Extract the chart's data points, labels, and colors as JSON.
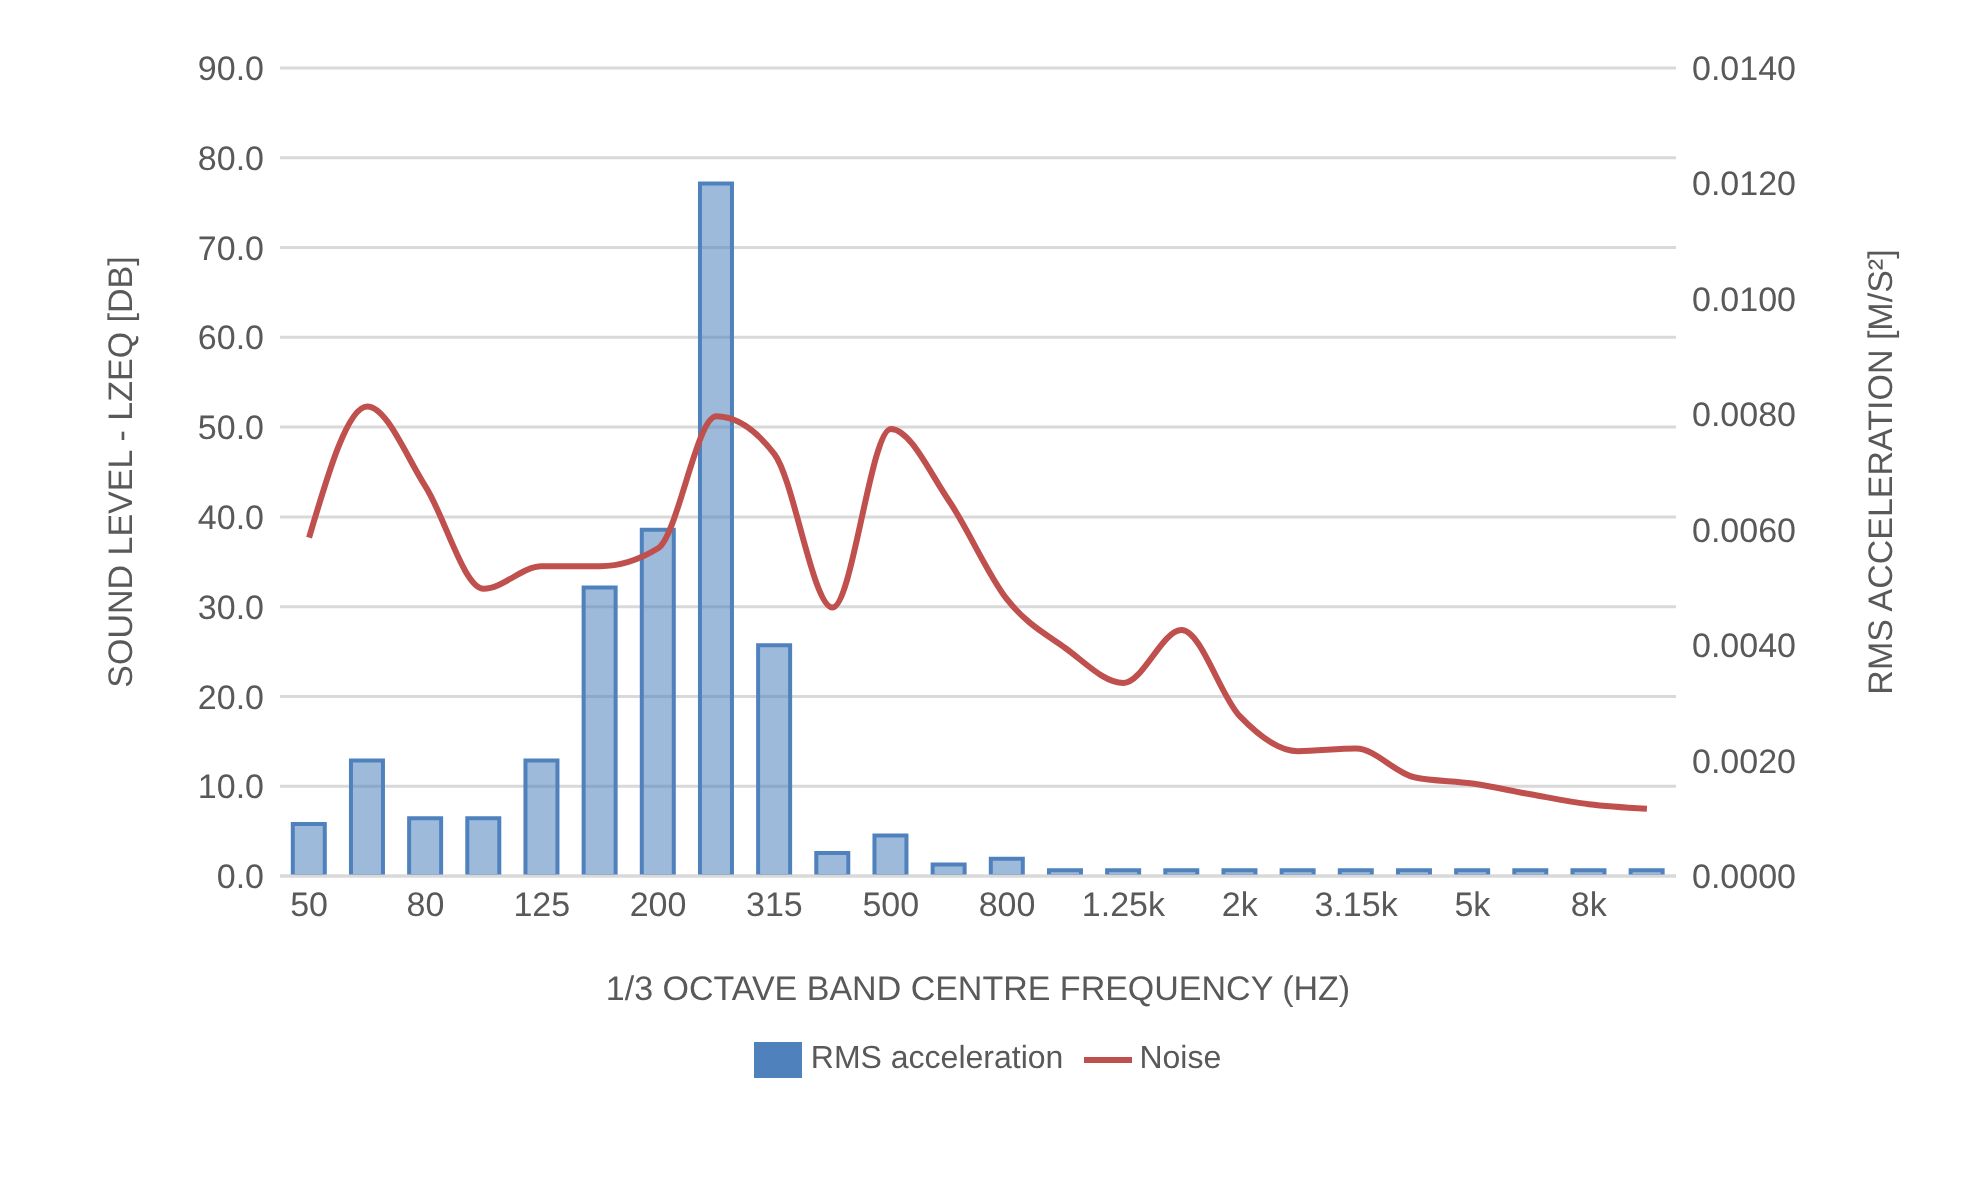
{
  "chart_data": {
    "type": "bar",
    "xlabel": "1/3 OCTAVE BAND CENTRE FREQUENCY (HZ)",
    "ylabel": "SOUND LEVEL - LZEQ [DB]",
    "y2label": "RMS ACCELERATION [M/S²]",
    "categories": [
      "50",
      null,
      "80",
      null,
      "125",
      null,
      "200",
      null,
      "315",
      null,
      "500",
      null,
      "800",
      null,
      "1.25k",
      null,
      "2k",
      null,
      "3.15k",
      null,
      "5k",
      null,
      "8k",
      null
    ],
    "series": [
      {
        "name": "RMS acceleration",
        "axis": "y2",
        "color": "#4f81bd",
        "values": [
          0.0009,
          0.002,
          0.001,
          0.001,
          0.002,
          0.005,
          0.006,
          0.012,
          0.004,
          0.0004,
          0.0007,
          0.0002,
          0.0003,
          0.0001,
          0.0001,
          0.0001,
          0.0001,
          0.0001,
          0.0001,
          0.0001,
          0.0001,
          0.0001,
          0.0001,
          0.0001
        ]
      },
      {
        "name": "Noise",
        "type": "line",
        "axis": "y",
        "color": "#c0504d",
        "values": [
          37.7,
          52.3,
          43.4,
          32.0,
          34.5,
          34.5,
          36.5,
          51.2,
          47.0,
          29.9,
          49.8,
          41.8,
          30.8,
          25.4,
          21.5,
          27.4,
          17.8,
          13.9,
          14.2,
          11.0,
          10.3,
          9.1,
          8.0,
          7.5
        ]
      }
    ],
    "ylim": [
      0,
      90
    ],
    "yticks": [
      {
        "value": 0,
        "label": "0.0"
      },
      {
        "value": 10,
        "label": "10.0"
      },
      {
        "value": 20,
        "label": "20.0"
      },
      {
        "value": 30,
        "label": "30.0"
      },
      {
        "value": 40,
        "label": "40.0"
      },
      {
        "value": 50,
        "label": "50.0"
      },
      {
        "value": 60,
        "label": "60.0"
      },
      {
        "value": 70,
        "label": "70.0"
      },
      {
        "value": 80,
        "label": "80.0"
      },
      {
        "value": 90,
        "label": "90.0"
      }
    ],
    "y2lim": [
      0,
      0.014
    ],
    "y2ticks": [
      {
        "value": 0,
        "label": "0.0000"
      },
      {
        "value": 0.002,
        "label": "0.0020"
      },
      {
        "value": 0.004,
        "label": "0.0040"
      },
      {
        "value": 0.006,
        "label": "0.0060"
      },
      {
        "value": 0.008,
        "label": "0.0080"
      },
      {
        "value": 0.01,
        "label": "0.0100"
      },
      {
        "value": 0.012,
        "label": "0.0120"
      },
      {
        "value": 0.014,
        "label": "0.0140"
      }
    ],
    "grid": "y",
    "legend": "bottom",
    "marker": "none",
    "line_style": "solid"
  }
}
